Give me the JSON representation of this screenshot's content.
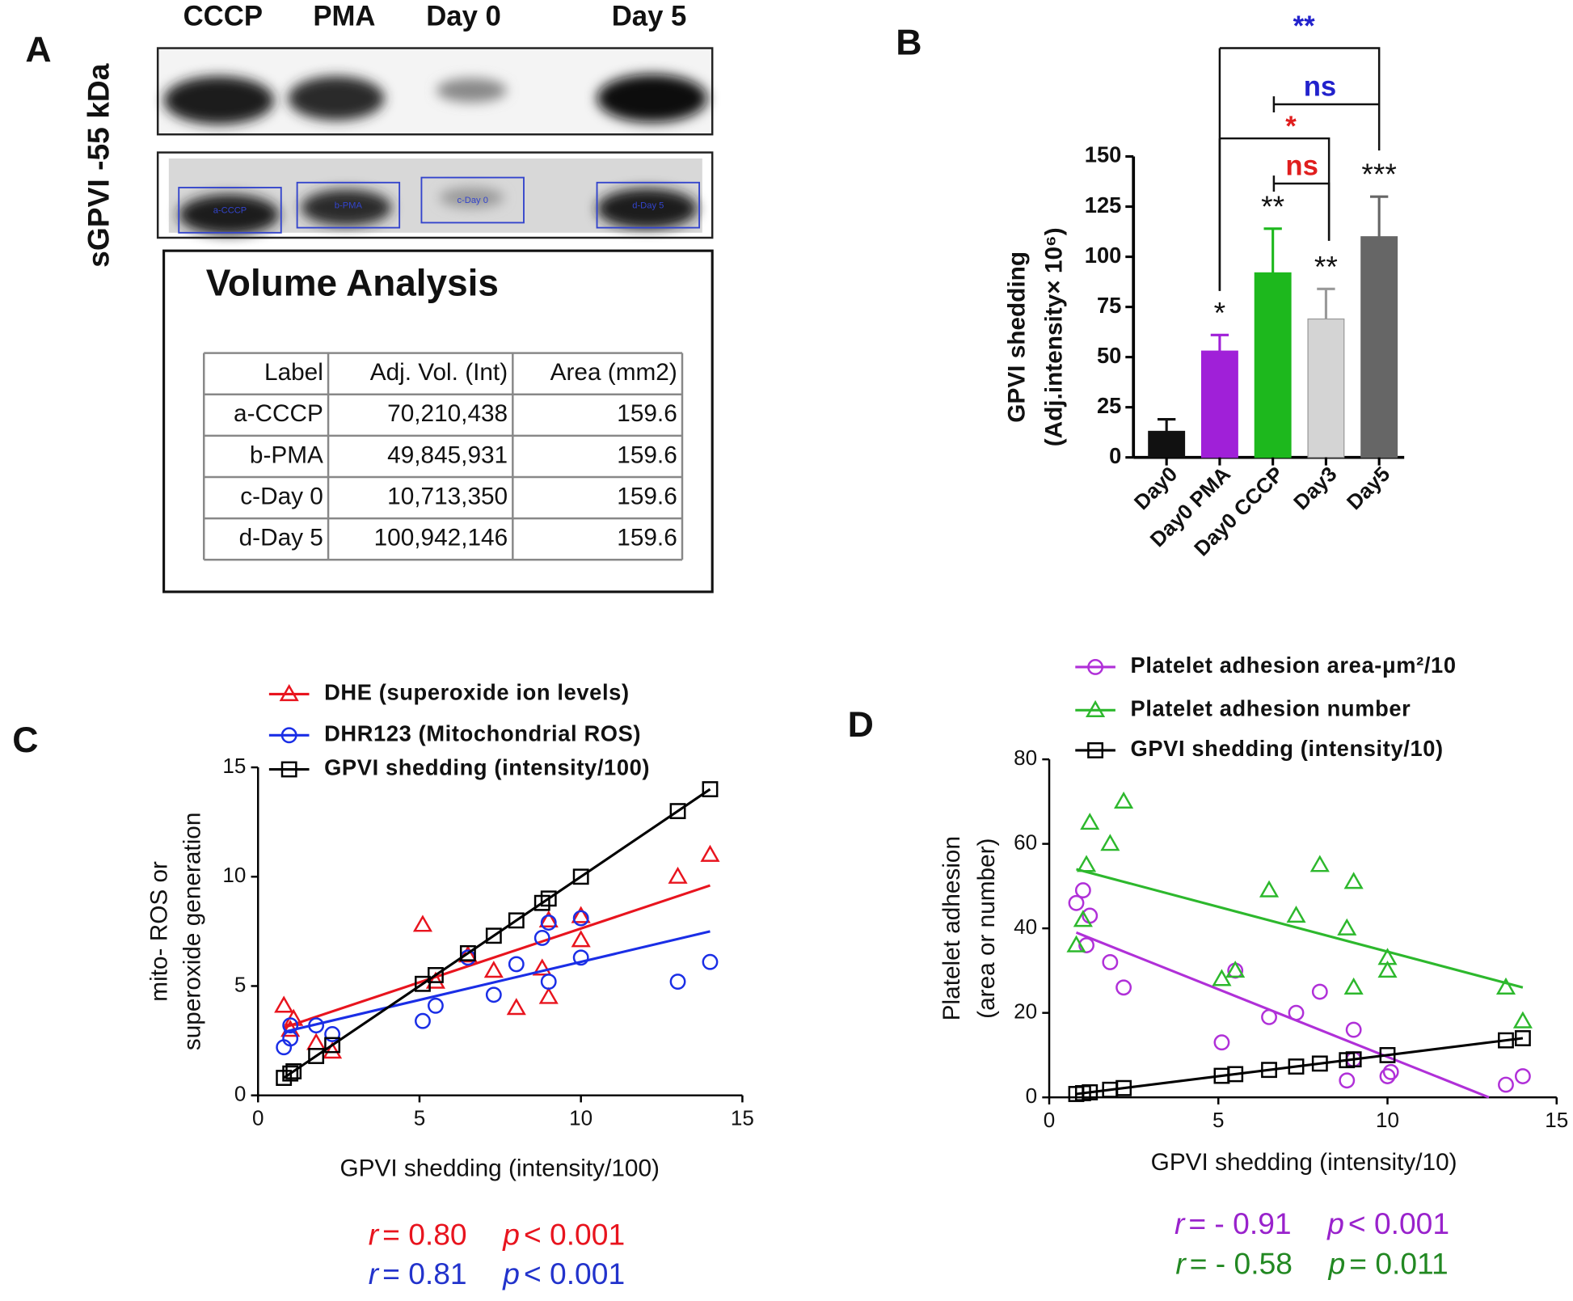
{
  "panel_a": {
    "label": "A",
    "lanes": [
      "CCCP",
      "PMA",
      "Day 0",
      "Day 5"
    ],
    "side_label": "sGPVI -55 kDa",
    "box_labels": [
      "a-CCCP",
      "b-PMA",
      "c-Day 0",
      "d-Day 5"
    ],
    "volume_title": "Volume Analysis",
    "table": {
      "header": [
        "Label",
        "Adj. Vol. (Int)",
        "Area (mm2)"
      ],
      "rows": [
        [
          "a-CCCP",
          "70,210,438",
          "159.6"
        ],
        [
          "b-PMA",
          "49,845,931",
          "159.6"
        ],
        [
          "c-Day 0",
          "10,713,350",
          "159.6"
        ],
        [
          "d-Day 5",
          "100,942,146",
          "159.6"
        ]
      ]
    }
  },
  "chart_data": [
    {
      "type": "bar",
      "label": "B",
      "ylabel": [
        "GPVI shedding",
        "(Adj.intensity× 10⁶)"
      ],
      "categories": [
        "Day0",
        "Day0 PMA",
        "Day0 CCCP",
        "Day3",
        "Day5"
      ],
      "values": [
        13,
        53,
        92,
        69,
        110
      ],
      "errors": [
        6,
        8,
        22,
        15,
        20
      ],
      "colors": [
        "#111111",
        "#a020d8",
        "#1db81d",
        "#d4d4d4",
        "#666666"
      ],
      "significance": [
        null,
        "*",
        "**",
        "**",
        "***"
      ],
      "comparisons": [
        {
          "text": "**",
          "color": "#2222cc"
        },
        {
          "text": "ns",
          "color": "#2222cc"
        },
        {
          "text": "*",
          "color": "#e01e1e"
        },
        {
          "text": "ns",
          "color": "#e01e1e"
        }
      ],
      "ylim": [
        0,
        150
      ],
      "yticks": [
        0,
        25,
        50,
        75,
        100,
        125,
        150
      ]
    },
    {
      "type": "scatter",
      "label": "C",
      "xlabel": "GPVI shedding (intensity/100)",
      "ylabel": [
        "mito- ROS or",
        "superoxide generation"
      ],
      "xlim": [
        0,
        15
      ],
      "xticks": [
        0,
        5,
        10,
        15
      ],
      "ylim": [
        0,
        15
      ],
      "yticks": [
        0,
        5,
        10,
        15
      ],
      "series": [
        {
          "name": "DHE (superoxide ion levels)",
          "color": "#e8141e",
          "marker": "triangle",
          "x": [
            0.8,
            1.0,
            1.1,
            1.8,
            2.3,
            5.1,
            5.5,
            6.5,
            7.3,
            8.0,
            8.8,
            9.0,
            9.0,
            10.0,
            10.0,
            13.0,
            14.0
          ],
          "values": [
            4.1,
            3.0,
            3.5,
            2.4,
            2.0,
            7.8,
            5.2,
            6.4,
            5.7,
            4.0,
            5.8,
            4.5,
            8.0,
            7.1,
            8.2,
            10.0,
            11.0
          ],
          "fit_x": [
            0.8,
            14.0
          ],
          "fit_y": [
            3.1,
            9.6
          ]
        },
        {
          "name": "DHR123 (Mitochondrial ROS)",
          "color": "#1a2ee6",
          "marker": "circle",
          "x": [
            0.8,
            1.0,
            1.0,
            1.8,
            2.3,
            5.1,
            5.5,
            6.5,
            7.3,
            8.0,
            8.8,
            9.0,
            9.0,
            10.0,
            10.0,
            13.0,
            14.0
          ],
          "values": [
            2.2,
            2.6,
            3.2,
            3.2,
            2.8,
            3.4,
            4.1,
            6.3,
            4.6,
            6.0,
            7.2,
            5.2,
            7.9,
            8.1,
            6.3,
            5.2,
            6.1
          ],
          "fit_x": [
            0.8,
            14.0
          ],
          "fit_y": [
            2.9,
            7.5
          ]
        },
        {
          "name": "GPVI shedding (intensity/100)",
          "color": "#000000",
          "marker": "square",
          "x": [
            0.8,
            1.0,
            1.1,
            1.8,
            2.3,
            5.1,
            5.5,
            6.5,
            7.3,
            8.0,
            8.8,
            9.0,
            10.0,
            13.0,
            14.0
          ],
          "values": [
            0.8,
            1.0,
            1.1,
            1.8,
            2.3,
            5.1,
            5.5,
            6.5,
            7.3,
            8.0,
            8.8,
            9.0,
            10.0,
            13.0,
            14.0
          ],
          "fit_x": [
            0.8,
            14.0
          ],
          "fit_y": [
            0.8,
            14.0
          ]
        }
      ],
      "stats": [
        {
          "color": "#e8141e",
          "parts": [
            "r",
            "= 0.80",
            "p",
            "< 0.001"
          ]
        },
        {
          "color": "#2233cc",
          "parts": [
            "r",
            "= 0.81",
            "p",
            "< 0.001"
          ]
        }
      ]
    },
    {
      "type": "scatter",
      "label": "D",
      "xlabel": "GPVI shedding (intensity/10)",
      "ylabel": [
        "Platelet adhesion",
        "(area or number)"
      ],
      "xlim": [
        0,
        15
      ],
      "xticks": [
        0,
        5,
        10,
        15
      ],
      "ylim": [
        0,
        80
      ],
      "yticks": [
        0,
        20,
        40,
        60,
        80
      ],
      "series": [
        {
          "name": "Platelet adhesion area-μm²/10",
          "color": "#b030d8",
          "marker": "circle",
          "x": [
            0.8,
            1.0,
            1.1,
            1.2,
            1.8,
            2.2,
            5.1,
            5.5,
            6.5,
            7.3,
            8.0,
            8.8,
            9.0,
            9.0,
            10.0,
            10.1,
            13.5,
            14.0
          ],
          "values": [
            46,
            49,
            36,
            43,
            32,
            26,
            13,
            30,
            19,
            20,
            25,
            4,
            16,
            9,
            5,
            6,
            3,
            5
          ],
          "fit_x": [
            0.8,
            13.0
          ],
          "fit_y": [
            39,
            0
          ]
        },
        {
          "name": "Platelet adhesion number",
          "color": "#2db82d",
          "marker": "triangle",
          "x": [
            0.8,
            1.0,
            1.1,
            1.2,
            1.8,
            2.2,
            5.1,
            5.5,
            6.5,
            7.3,
            8.0,
            8.8,
            9.0,
            9.0,
            10.0,
            10.0,
            13.5,
            14.0
          ],
          "values": [
            36,
            42,
            55,
            65,
            60,
            70,
            28,
            30,
            49,
            43,
            55,
            40,
            51,
            26,
            30,
            33,
            26,
            18
          ],
          "fit_x": [
            0.8,
            14.0
          ],
          "fit_y": [
            54,
            26
          ]
        },
        {
          "name": "GPVI shedding (intensity/10)",
          "color": "#000000",
          "marker": "square",
          "x": [
            0.8,
            1.0,
            1.2,
            1.8,
            2.2,
            5.1,
            5.5,
            6.5,
            7.3,
            8.0,
            8.8,
            9.0,
            10.0,
            13.5,
            14.0
          ],
          "values": [
            0.8,
            1.0,
            1.2,
            1.8,
            2.2,
            5.1,
            5.5,
            6.5,
            7.3,
            8.0,
            8.8,
            9.0,
            10.0,
            13.5,
            14.0
          ],
          "fit_x": [
            0.8,
            14.0
          ],
          "fit_y": [
            0.8,
            14.0
          ]
        }
      ],
      "stats": [
        {
          "color": "#9922cc",
          "parts": [
            "r",
            "= - 0.91",
            "p",
            "< 0.001"
          ]
        },
        {
          "color": "#228822",
          "parts": [
            "r",
            "= - 0.58",
            "p",
            "= 0.011"
          ]
        }
      ]
    }
  ]
}
